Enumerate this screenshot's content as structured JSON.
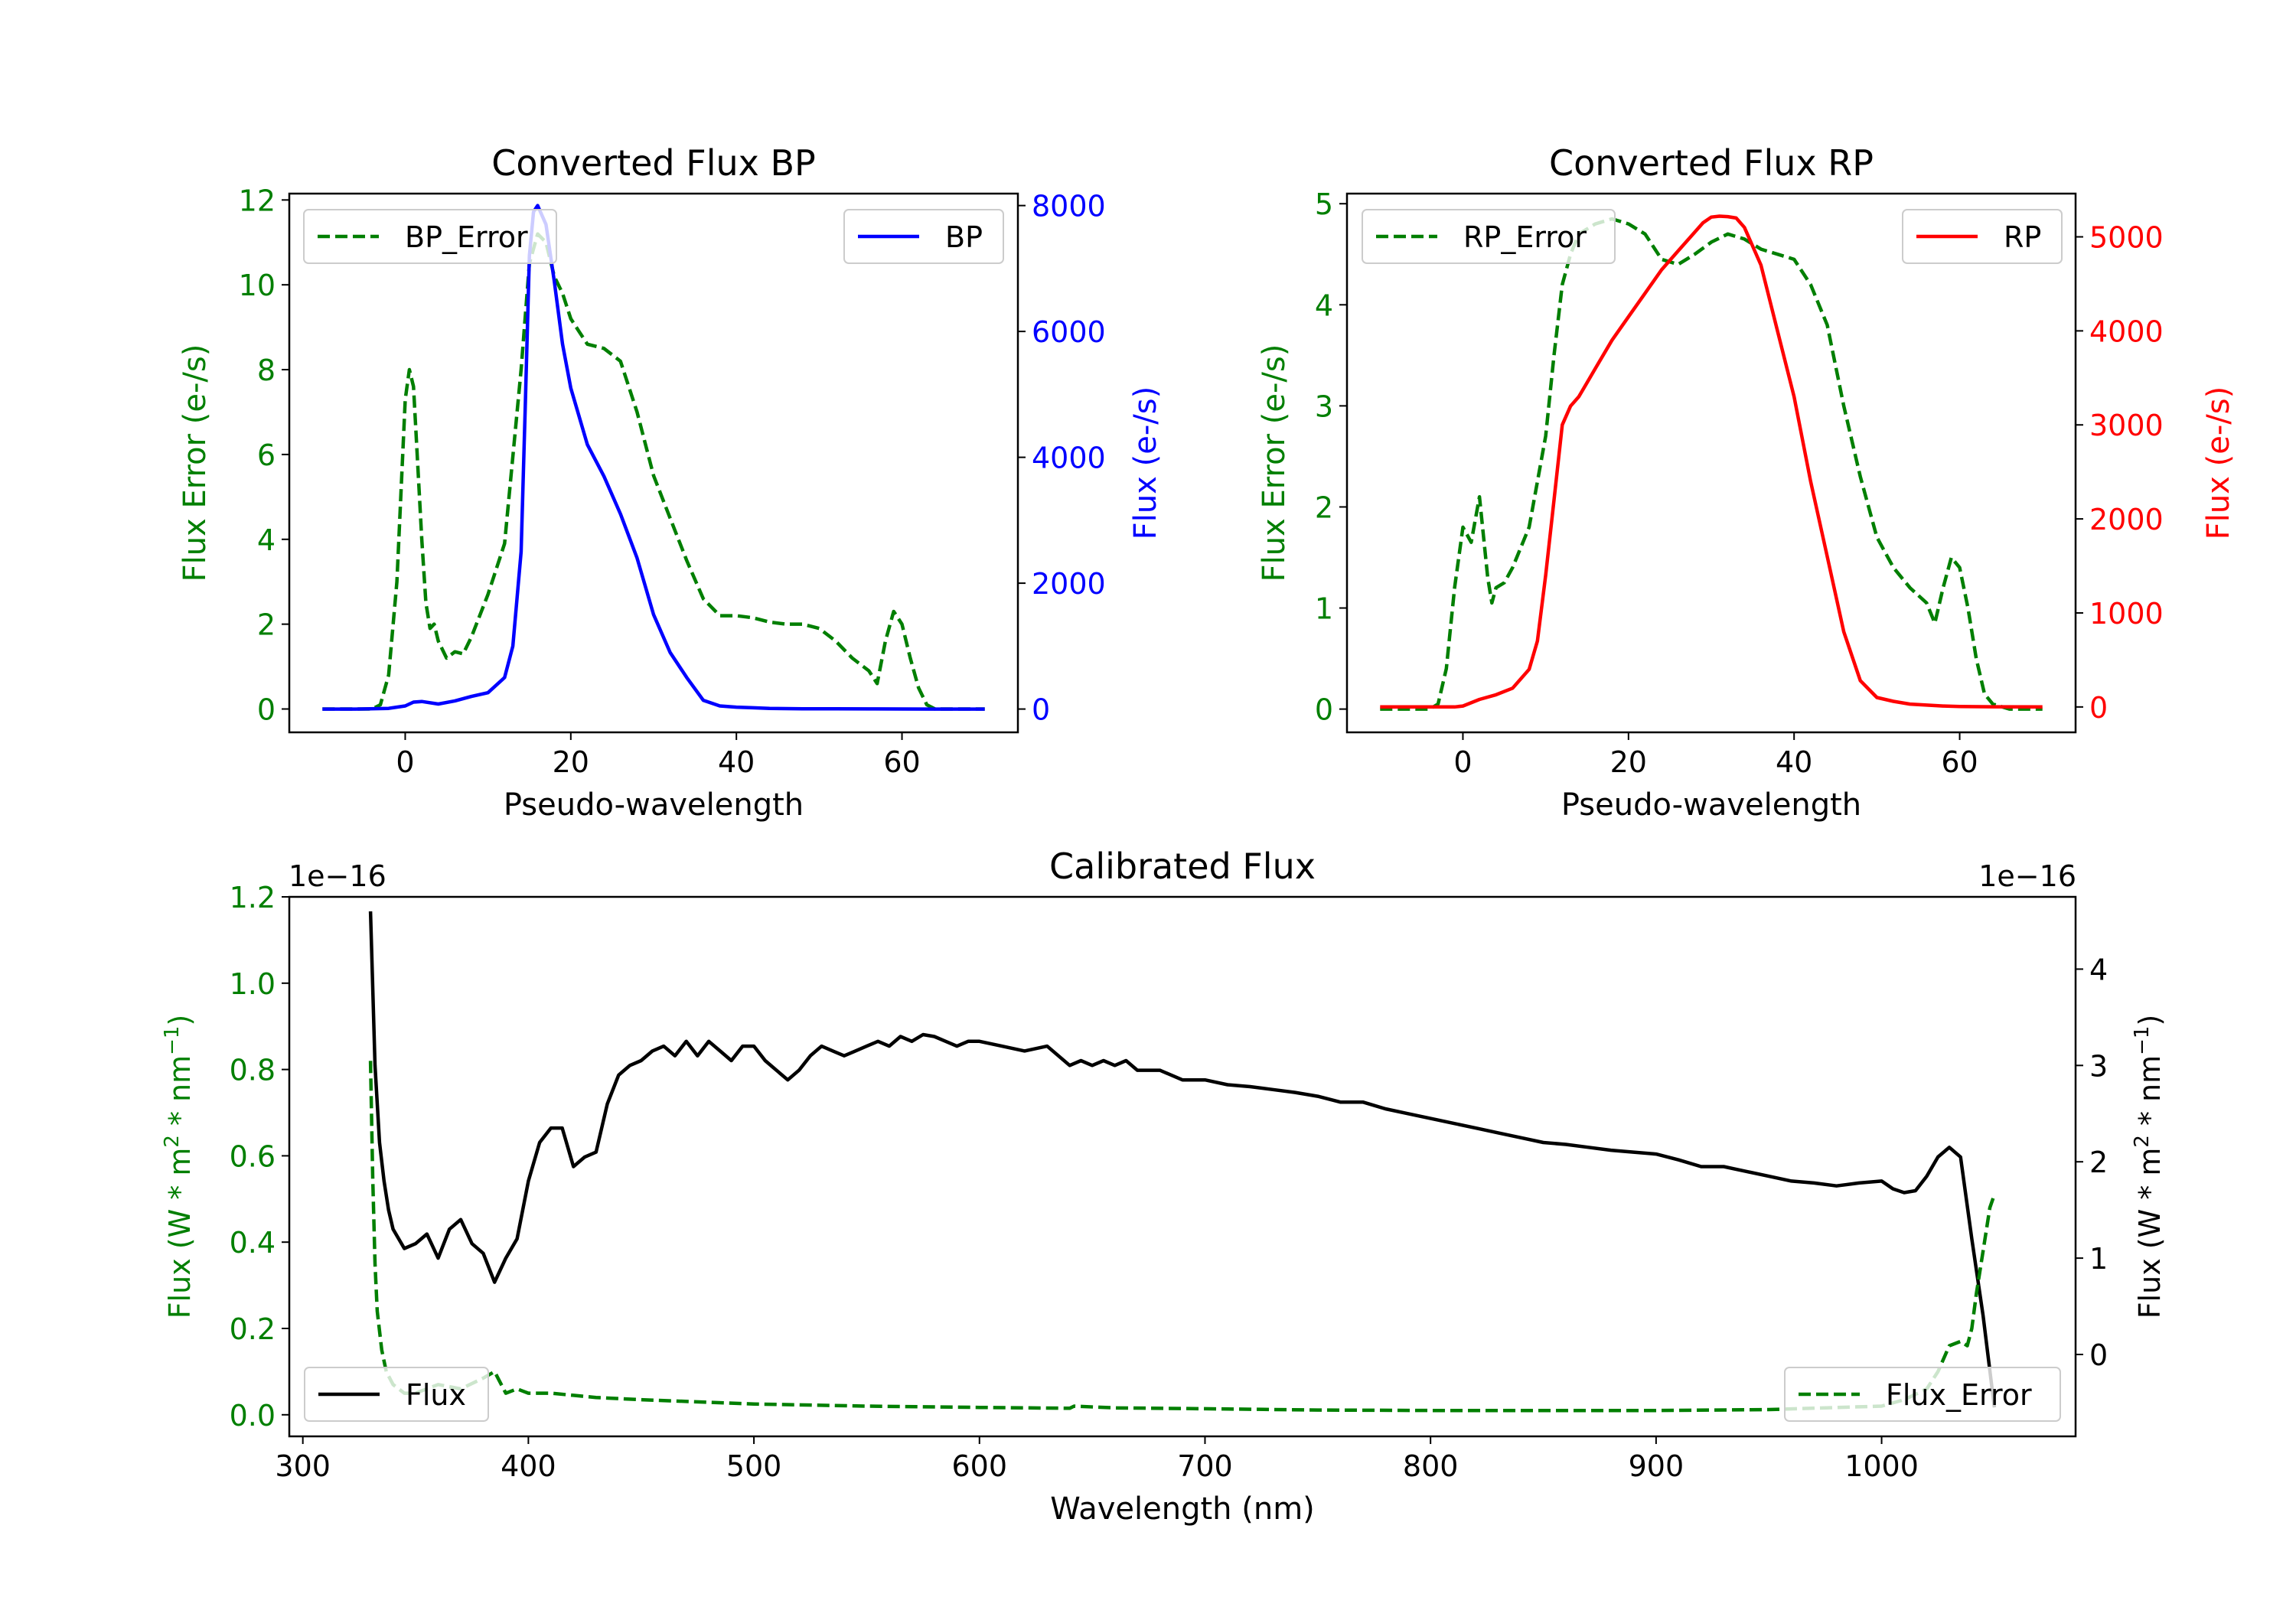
{
  "colors": {
    "axis": "#000000",
    "bp": "#0000ff",
    "rp": "#ff0000",
    "error": "#007f00",
    "flux": "#000000",
    "legend_edge": "#cccccc"
  },
  "chart_data": [
    {
      "id": "bp",
      "type": "line",
      "title": "Converted Flux BP",
      "xlabel": "Pseudo-wavelength",
      "ylabel_left": "Flux Error (e-/s)",
      "ylabel_right": "Flux (e-/s)",
      "xlim": [
        -14,
        74
      ],
      "ylim_left": [
        -0.55,
        12.15
      ],
      "ylim_right": [
        -370,
        8190
      ],
      "xticks": [
        0,
        20,
        40,
        60
      ],
      "yticks_left": [
        0,
        2,
        4,
        6,
        8,
        10,
        12
      ],
      "yticks_right": [
        0,
        2000,
        4000,
        6000,
        8000
      ],
      "ytick_labels_right": [
        "0",
        "2000",
        "4000",
        "6000",
        "8000"
      ],
      "legend_left_location": "upper left",
      "legend_right_location": "upper right",
      "series": [
        {
          "name": "BP_Error",
          "axis": "left",
          "style": "dashed",
          "color_key": "error",
          "x": [
            -10,
            -8,
            -6,
            -4,
            -3,
            -2,
            -1,
            0,
            0.5,
            1,
            2,
            2.5,
            3,
            3.5,
            4,
            5,
            6,
            7,
            8,
            10,
            12,
            14,
            15,
            16,
            17,
            18,
            19,
            20,
            21,
            22,
            24,
            26,
            28,
            30,
            32,
            34,
            36,
            38,
            40,
            42,
            44,
            46,
            48,
            50,
            52,
            54,
            56,
            57,
            58,
            59,
            60,
            61,
            62,
            63,
            64,
            65,
            66,
            68,
            70
          ],
          "y": [
            0,
            0,
            0,
            0,
            0.1,
            0.8,
            3,
            7.3,
            8,
            7.6,
            4,
            2.5,
            1.9,
            2,
            1.6,
            1.2,
            1.35,
            1.3,
            1.7,
            2.7,
            3.9,
            8,
            10.5,
            11.2,
            11,
            10.2,
            9.8,
            9.2,
            8.9,
            8.6,
            8.5,
            8.2,
            7,
            5.5,
            4.5,
            3.5,
            2.6,
            2.2,
            2.2,
            2.15,
            2.05,
            2,
            2,
            1.9,
            1.6,
            1.2,
            0.9,
            0.6,
            1.6,
            2.3,
            2,
            1.2,
            0.5,
            0.1,
            0,
            0,
            0,
            0,
            0
          ]
        },
        {
          "name": "BP",
          "axis": "right",
          "style": "solid",
          "color_key": "bp",
          "x": [
            -10,
            -6,
            -2,
            0,
            1,
            2,
            4,
            6,
            8,
            10,
            12,
            13,
            14,
            14.5,
            15,
            15.5,
            16,
            17,
            18,
            19,
            20,
            22,
            24,
            26,
            28,
            30,
            32,
            34,
            36,
            38,
            40,
            42,
            44,
            48,
            52,
            56,
            60,
            64,
            66,
            70
          ],
          "y": [
            0,
            0,
            10,
            50,
            110,
            120,
            80,
            130,
            200,
            260,
            500,
            1000,
            2500,
            4800,
            7200,
            7900,
            8000,
            7700,
            6800,
            5800,
            5100,
            4200,
            3700,
            3100,
            2400,
            1500,
            900,
            500,
            140,
            50,
            30,
            20,
            10,
            5,
            3,
            2,
            1,
            0,
            0,
            0
          ]
        }
      ]
    },
    {
      "id": "rp",
      "type": "line",
      "title": "Converted Flux RP",
      "xlabel": "Pseudo-wavelength",
      "ylabel_left": "Flux Error (e-/s)",
      "ylabel_right": "Flux (e-/s)",
      "xlim": [
        -14,
        74
      ],
      "ylim_left": [
        -0.23,
        5.1
      ],
      "ylim_right": [
        -270,
        5460
      ],
      "xticks": [
        0,
        20,
        40,
        60
      ],
      "yticks_left": [
        0,
        1,
        2,
        3,
        4,
        5
      ],
      "yticks_right": [
        0,
        1000,
        2000,
        3000,
        4000,
        5000
      ],
      "ytick_labels_right": [
        "0",
        "1000",
        "2000",
        "3000",
        "4000",
        "5000"
      ],
      "legend_left_location": "upper left",
      "legend_right_location": "upper right",
      "series": [
        {
          "name": "RP_Error",
          "axis": "left",
          "style": "dashed",
          "color_key": "error",
          "x": [
            -10,
            -6,
            -4,
            -3,
            -2,
            -1,
            0,
            1,
            2,
            3,
            3.5,
            4,
            5,
            6,
            8,
            10,
            11,
            12,
            13,
            14,
            16,
            18,
            20,
            22,
            24,
            26,
            28,
            30,
            32,
            34,
            36,
            38,
            40,
            42,
            44,
            46,
            48,
            50,
            52,
            54,
            56,
            57,
            58,
            59,
            60,
            61,
            62,
            63,
            64,
            66,
            70
          ],
          "y": [
            0,
            0,
            0,
            0.05,
            0.4,
            1.2,
            1.8,
            1.65,
            2.1,
            1.3,
            1.05,
            1.2,
            1.25,
            1.4,
            1.8,
            2.7,
            3.5,
            4.2,
            4.5,
            4.7,
            4.8,
            4.85,
            4.8,
            4.7,
            4.45,
            4.4,
            4.5,
            4.62,
            4.7,
            4.65,
            4.55,
            4.5,
            4.45,
            4.2,
            3.8,
            3,
            2.3,
            1.7,
            1.4,
            1.2,
            1.05,
            0.85,
            1.2,
            1.5,
            1.4,
            1,
            0.5,
            0.15,
            0.05,
            0,
            0
          ]
        },
        {
          "name": "RP",
          "axis": "right",
          "style": "solid",
          "color_key": "rp",
          "x": [
            -10,
            -4,
            -1,
            0,
            2,
            4,
            6,
            8,
            9,
            10,
            11,
            12,
            13,
            14,
            15,
            16,
            18,
            20,
            22,
            24,
            26,
            28,
            29,
            30,
            31,
            32,
            33,
            34,
            36,
            38,
            40,
            42,
            44,
            46,
            48,
            50,
            52,
            54,
            56,
            58,
            60,
            64,
            70
          ],
          "y": [
            0,
            0,
            0,
            10,
            80,
            130,
            200,
            400,
            700,
            1400,
            2200,
            3000,
            3200,
            3300,
            3450,
            3600,
            3900,
            4150,
            4400,
            4650,
            4850,
            5050,
            5150,
            5210,
            5220,
            5215,
            5200,
            5100,
            4700,
            4000,
            3300,
            2400,
            1600,
            800,
            280,
            100,
            60,
            30,
            20,
            10,
            5,
            2,
            0
          ]
        }
      ]
    },
    {
      "id": "calibrated",
      "type": "line",
      "title": "Calibrated Flux",
      "xlabel": "Wavelength (nm)",
      "ylabel_left_base": "Flux (W * m",
      "ylabel_left_mid": " * nm",
      "ylabel_right_base": "Flux (W * m",
      "ylabel_right_mid": " * nm",
      "ylabel_sup_m": "2",
      "ylabel_sup_nm": "−1",
      "ylabel_tail": ")",
      "offset_left": "1e−16",
      "offset_right": "1e−16",
      "xlim": [
        294,
        1086
      ],
      "ylim_left": [
        -0.05,
        1.2
      ],
      "ylim_right": [
        -0.85,
        4.75
      ],
      "xticks": [
        300,
        400,
        500,
        600,
        700,
        800,
        900,
        1000
      ],
      "yticks_left": [
        0.0,
        0.2,
        0.4,
        0.6,
        0.8,
        1.0,
        1.2
      ],
      "ytick_labels_left": [
        "0.0",
        "0.2",
        "0.4",
        "0.6",
        "0.8",
        "1.0",
        "1.2"
      ],
      "yticks_right": [
        0,
        1,
        2,
        3,
        4
      ],
      "legend_left_location": "lower left",
      "legend_right_location": "lower right",
      "series": [
        {
          "name": "Flux",
          "axis": "right",
          "style": "solid",
          "color_key": "flux",
          "x": [
            330,
            332,
            334,
            336,
            338,
            340,
            345,
            350,
            355,
            360,
            365,
            370,
            375,
            380,
            385,
            390,
            395,
            400,
            405,
            410,
            415,
            420,
            425,
            430,
            435,
            440,
            445,
            450,
            455,
            460,
            465,
            470,
            475,
            480,
            485,
            490,
            495,
            500,
            505,
            510,
            515,
            520,
            525,
            530,
            535,
            540,
            545,
            550,
            555,
            560,
            565,
            570,
            575,
            580,
            585,
            590,
            595,
            600,
            610,
            620,
            630,
            640,
            645,
            650,
            655,
            660,
            665,
            670,
            680,
            690,
            700,
            710,
            720,
            730,
            740,
            750,
            760,
            770,
            780,
            790,
            800,
            810,
            820,
            830,
            840,
            850,
            860,
            870,
            880,
            890,
            900,
            910,
            920,
            930,
            940,
            950,
            960,
            970,
            980,
            990,
            1000,
            1005,
            1010,
            1015,
            1020,
            1025,
            1030,
            1035,
            1040,
            1045,
            1050
          ],
          "y": [
            4.6,
            3,
            2.2,
            1.8,
            1.5,
            1.3,
            1.1,
            1.15,
            1.25,
            1.0,
            1.3,
            1.4,
            1.15,
            1.05,
            0.75,
            1.0,
            1.2,
            1.8,
            2.2,
            2.35,
            2.35,
            1.95,
            2.05,
            2.1,
            2.6,
            2.9,
            3.0,
            3.05,
            3.15,
            3.2,
            3.1,
            3.25,
            3.1,
            3.25,
            3.15,
            3.05,
            3.2,
            3.2,
            3.05,
            2.95,
            2.85,
            2.95,
            3.1,
            3.2,
            3.15,
            3.1,
            3.15,
            3.2,
            3.25,
            3.2,
            3.3,
            3.25,
            3.32,
            3.3,
            3.25,
            3.2,
            3.25,
            3.25,
            3.2,
            3.15,
            3.2,
            3.0,
            3.05,
            3.0,
            3.05,
            3.0,
            3.05,
            2.95,
            2.95,
            2.85,
            2.85,
            2.8,
            2.78,
            2.75,
            2.72,
            2.68,
            2.62,
            2.62,
            2.55,
            2.5,
            2.45,
            2.4,
            2.35,
            2.3,
            2.25,
            2.2,
            2.18,
            2.15,
            2.12,
            2.1,
            2.08,
            2.02,
            1.95,
            1.95,
            1.9,
            1.85,
            1.8,
            1.78,
            1.75,
            1.78,
            1.8,
            1.72,
            1.68,
            1.7,
            1.85,
            2.05,
            2.15,
            2.05,
            1.2,
            0.4,
            -0.55
          ]
        },
        {
          "name": "Flux_Error",
          "axis": "left",
          "style": "dashed",
          "color_key": "error",
          "x": [
            330,
            331,
            332,
            333,
            335,
            337,
            340,
            345,
            350,
            360,
            370,
            380,
            385,
            390,
            395,
            400,
            410,
            420,
            430,
            450,
            500,
            550,
            600,
            640,
            642,
            660,
            700,
            750,
            800,
            850,
            900,
            950,
            1000,
            1010,
            1020,
            1025,
            1030,
            1035,
            1038,
            1040,
            1042,
            1045,
            1048,
            1050
          ],
          "y": [
            0.82,
            0.55,
            0.35,
            0.24,
            0.15,
            0.1,
            0.07,
            0.05,
            0.05,
            0.07,
            0.06,
            0.085,
            0.1,
            0.05,
            0.06,
            0.05,
            0.05,
            0.045,
            0.04,
            0.035,
            0.025,
            0.02,
            0.017,
            0.015,
            0.02,
            0.016,
            0.014,
            0.011,
            0.01,
            0.01,
            0.01,
            0.012,
            0.02,
            0.035,
            0.06,
            0.1,
            0.16,
            0.17,
            0.16,
            0.2,
            0.28,
            0.38,
            0.48,
            0.51
          ]
        }
      ]
    }
  ]
}
